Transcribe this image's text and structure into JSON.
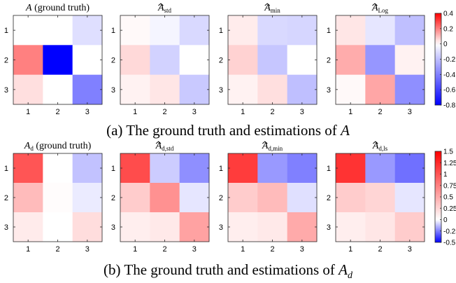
{
  "chart_data": [
    {
      "type": "heatmap",
      "group": "a",
      "caption": {
        "text": "(a) The ground truth and estimations of ",
        "symbol": "A"
      },
      "colorbar": {
        "min": -0.8,
        "max": 0.4,
        "neg_color": "#0000ff",
        "pos_color": "#ff0000",
        "ticks": [
          "0.4",
          "0.2",
          "0",
          "-0.2",
          "-0.4",
          "-0.6",
          "-0.8"
        ],
        "tick_values": [
          0.4,
          0.2,
          0,
          -0.2,
          -0.4,
          -0.6,
          -0.8
        ]
      },
      "panels": [
        {
          "title": {
            "sym": "A",
            "hat": false,
            "sub": "",
            "suffix": " (ground truth)"
          },
          "x_ticks": [
            "1",
            "2",
            "3"
          ],
          "y_ticks": [
            "1",
            "2",
            "3"
          ],
          "z": [
            [
              0.0,
              0.0,
              -0.1
            ],
            [
              0.2,
              -0.8,
              0.0
            ],
            [
              0.05,
              0.0,
              -0.4
            ]
          ]
        },
        {
          "title": {
            "sym": "A",
            "hat": true,
            "sub": "std",
            "suffix": ""
          },
          "x_ticks": [
            "1",
            "2",
            "3"
          ],
          "y_ticks": [
            "1",
            "2",
            "3"
          ],
          "z": [
            [
              0.01,
              -0.03,
              -0.12
            ],
            [
              0.06,
              -0.14,
              0.0
            ],
            [
              0.02,
              0.04,
              -0.17
            ]
          ]
        },
        {
          "title": {
            "sym": "A",
            "hat": true,
            "sub": "min",
            "suffix": ""
          },
          "x_ticks": [
            "1",
            "2",
            "3"
          ],
          "y_ticks": [
            "1",
            "2",
            "3"
          ],
          "z": [
            [
              0.03,
              -0.12,
              -0.13
            ],
            [
              0.07,
              -0.18,
              0.0
            ],
            [
              0.02,
              0.05,
              -0.2
            ]
          ]
        },
        {
          "title": {
            "sym": "A",
            "hat": true,
            "sub": "Log",
            "suffix": ""
          },
          "x_ticks": [
            "1",
            "2",
            "3"
          ],
          "y_ticks": [
            "1",
            "2",
            "3"
          ],
          "z": [
            [
              0.04,
              -0.08,
              -0.2
            ],
            [
              0.13,
              -0.33,
              0.02
            ],
            [
              0.01,
              0.14,
              -0.35
            ]
          ]
        }
      ]
    },
    {
      "type": "heatmap",
      "group": "b",
      "caption": {
        "text": "(b) The ground truth and estimations of ",
        "symbol": "A",
        "symbol_sub": "d"
      },
      "colorbar": {
        "min": -0.5,
        "max": 1.5,
        "neg_color": "#0000ff",
        "pos_color": "#ff0000",
        "ticks": [
          "1.5",
          "1.25",
          "1",
          "0.75",
          "0.5",
          "0.25",
          "0",
          "-0.25",
          "-0.5"
        ],
        "tick_values": [
          1.5,
          1.25,
          1.0,
          0.75,
          0.5,
          0.25,
          0,
          -0.25,
          -0.5
        ]
      },
      "panels": [
        {
          "title": {
            "sym": "A",
            "hat": false,
            "sub": "d",
            "suffix": " (ground truth)"
          },
          "x_ticks": [
            "1",
            "2",
            "3"
          ],
          "y_ticks": [
            "1",
            "2",
            "3"
          ],
          "z": [
            [
              1.0,
              0.0,
              -0.12
            ],
            [
              0.4,
              0.02,
              -0.04
            ],
            [
              0.12,
              0.0,
              0.2
            ]
          ]
        },
        {
          "title": {
            "sym": "A",
            "hat": true,
            "sub": "d,std",
            "suffix": ""
          },
          "x_ticks": [
            "1",
            "2",
            "3"
          ],
          "y_ticks": [
            "1",
            "2",
            "3"
          ],
          "z": [
            [
              1.05,
              -0.1,
              -0.22
            ],
            [
              0.3,
              0.65,
              -0.05
            ],
            [
              0.1,
              0.13,
              0.55
            ]
          ]
        },
        {
          "title": {
            "sym": "A",
            "hat": true,
            "sub": "d,min",
            "suffix": ""
          },
          "x_ticks": [
            "1",
            "2",
            "3"
          ],
          "y_ticks": [
            "1",
            "2",
            "3"
          ],
          "z": [
            [
              1.15,
              -0.2,
              -0.25
            ],
            [
              0.3,
              0.4,
              -0.06
            ],
            [
              0.1,
              0.13,
              0.5
            ]
          ]
        },
        {
          "title": {
            "sym": "A",
            "hat": true,
            "sub": "d,ls",
            "suffix": ""
          },
          "x_ticks": [
            "1",
            "2",
            "3"
          ],
          "y_ticks": [
            "1",
            "2",
            "3"
          ],
          "z": [
            [
              1.2,
              -0.2,
              -0.28
            ],
            [
              0.3,
              0.25,
              -0.05
            ],
            [
              0.1,
              0.15,
              0.3
            ]
          ]
        }
      ]
    }
  ]
}
